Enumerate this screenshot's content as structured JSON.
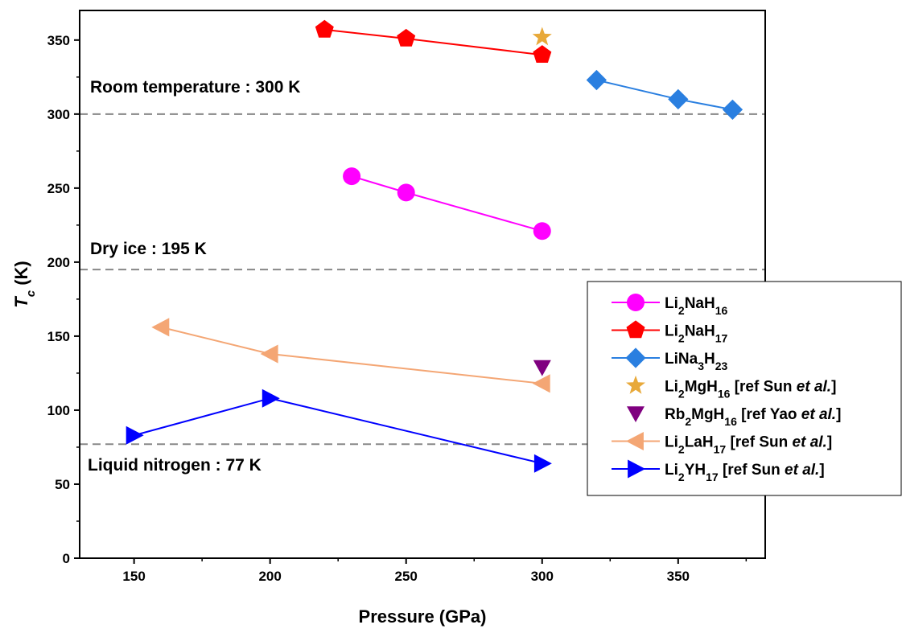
{
  "chart_data": {
    "type": "scatter",
    "xlabel": "Pressure (GPa)",
    "ylabel": {
      "main": "T",
      "sub": "c",
      "unit": " (K)"
    },
    "xlim": [
      130,
      382
    ],
    "ylim": [
      0,
      370
    ],
    "xticks": [
      150,
      200,
      250,
      300,
      350
    ],
    "yticks": [
      0,
      50,
      100,
      150,
      200,
      250,
      300,
      350
    ],
    "grid": false,
    "legend_position": "right",
    "reference_lines": [
      {
        "value": 300,
        "label": "Room temperature : 300 K"
      },
      {
        "value": 195,
        "label": "Dry ice : 195 K"
      },
      {
        "value": 77,
        "label": "Liquid nitrogen : 77 K"
      }
    ],
    "series": [
      {
        "name": [
          [
            "Li",
            ""
          ],
          [
            "2",
            "sub"
          ],
          [
            "NaH",
            ""
          ],
          [
            "16",
            "sub"
          ]
        ],
        "marker": "circle",
        "color": "#ff00ff",
        "connected": true,
        "points": [
          [
            230,
            258
          ],
          [
            250,
            247
          ],
          [
            300,
            221
          ]
        ]
      },
      {
        "name": [
          [
            "Li",
            ""
          ],
          [
            "2",
            "sub"
          ],
          [
            "NaH",
            ""
          ],
          [
            "17",
            "sub"
          ]
        ],
        "marker": "pentagon",
        "color": "#ff0000",
        "connected": true,
        "points": [
          [
            220,
            357
          ],
          [
            250,
            351
          ],
          [
            300,
            340
          ]
        ]
      },
      {
        "name": [
          [
            "LiNa",
            ""
          ],
          [
            "3",
            "sub"
          ],
          [
            "H",
            ""
          ],
          [
            "23",
            "sub"
          ]
        ],
        "marker": "diamond",
        "color": "#2a7fe0",
        "connected": true,
        "points": [
          [
            320,
            323
          ],
          [
            350,
            310
          ],
          [
            370,
            303
          ]
        ]
      },
      {
        "name": [
          [
            "Li",
            ""
          ],
          [
            "2",
            "sub"
          ],
          [
            "MgH",
            ""
          ],
          [
            "16",
            "sub"
          ],
          [
            " [ref Sun ",
            ""
          ],
          [
            "et al.",
            "italic"
          ],
          [
            "]",
            ""
          ]
        ],
        "marker": "star",
        "color": "#e8a93a",
        "connected": false,
        "points": [
          [
            300,
            352
          ]
        ]
      },
      {
        "name": [
          [
            "Rb",
            ""
          ],
          [
            "2",
            "sub"
          ],
          [
            "MgH",
            ""
          ],
          [
            "16",
            "sub"
          ],
          [
            " [ref Yao ",
            ""
          ],
          [
            "et al.",
            "italic"
          ],
          [
            "]",
            ""
          ]
        ],
        "marker": "triangle-down",
        "color": "#800080",
        "connected": false,
        "points": [
          [
            300,
            129
          ]
        ]
      },
      {
        "name": [
          [
            "Li",
            ""
          ],
          [
            "2",
            "sub"
          ],
          [
            "LaH",
            ""
          ],
          [
            "17",
            "sub"
          ],
          [
            " [ref Sun ",
            ""
          ],
          [
            "et al.",
            "italic"
          ],
          [
            "]",
            ""
          ]
        ],
        "marker": "triangle-left",
        "color": "#f4a674",
        "connected": true,
        "points": [
          [
            160,
            156
          ],
          [
            200,
            138
          ],
          [
            300,
            118
          ]
        ]
      },
      {
        "name": [
          [
            "Li",
            ""
          ],
          [
            "2",
            "sub"
          ],
          [
            "YH",
            ""
          ],
          [
            "17",
            "sub"
          ],
          [
            " [ref Sun ",
            ""
          ],
          [
            "et al.",
            "italic"
          ],
          [
            "]",
            ""
          ]
        ],
        "marker": "triangle-right",
        "color": "#0000ff",
        "connected": true,
        "points": [
          [
            150,
            83
          ],
          [
            200,
            108
          ],
          [
            300,
            64
          ]
        ]
      }
    ]
  }
}
